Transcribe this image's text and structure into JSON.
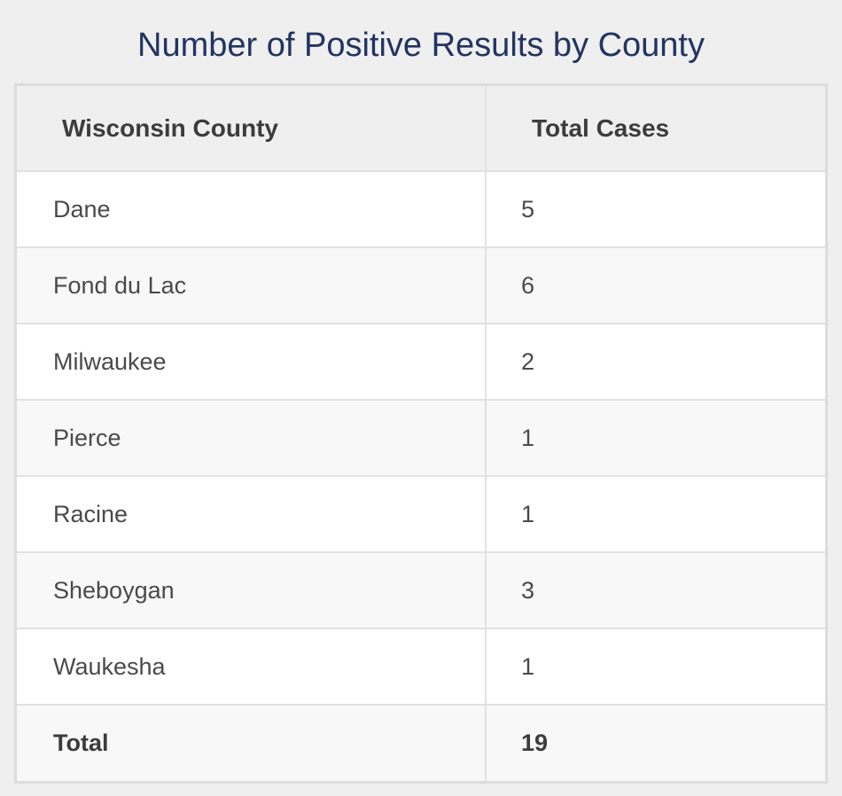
{
  "title": "Number of Positive Results by County",
  "table": {
    "headers": [
      "Wisconsin County",
      "Total Cases"
    ],
    "rows": [
      {
        "county": "Dane",
        "cases": "5"
      },
      {
        "county": "Fond du Lac",
        "cases": "6"
      },
      {
        "county": "Milwaukee",
        "cases": "2"
      },
      {
        "county": "Pierce",
        "cases": "1"
      },
      {
        "county": "Racine",
        "cases": "1"
      },
      {
        "county": "Sheboygan",
        "cases": "3"
      },
      {
        "county": "Waukesha",
        "cases": "1"
      }
    ],
    "total": {
      "label": "Total",
      "value": "19"
    }
  },
  "colors": {
    "title": "#223461",
    "background": "#efefef",
    "header_background": "#efefef",
    "row_background": "#ffffff",
    "alt_row_background": "#f8f8f8",
    "border": "#dcdcdc",
    "text": "#4a4a4a"
  }
}
